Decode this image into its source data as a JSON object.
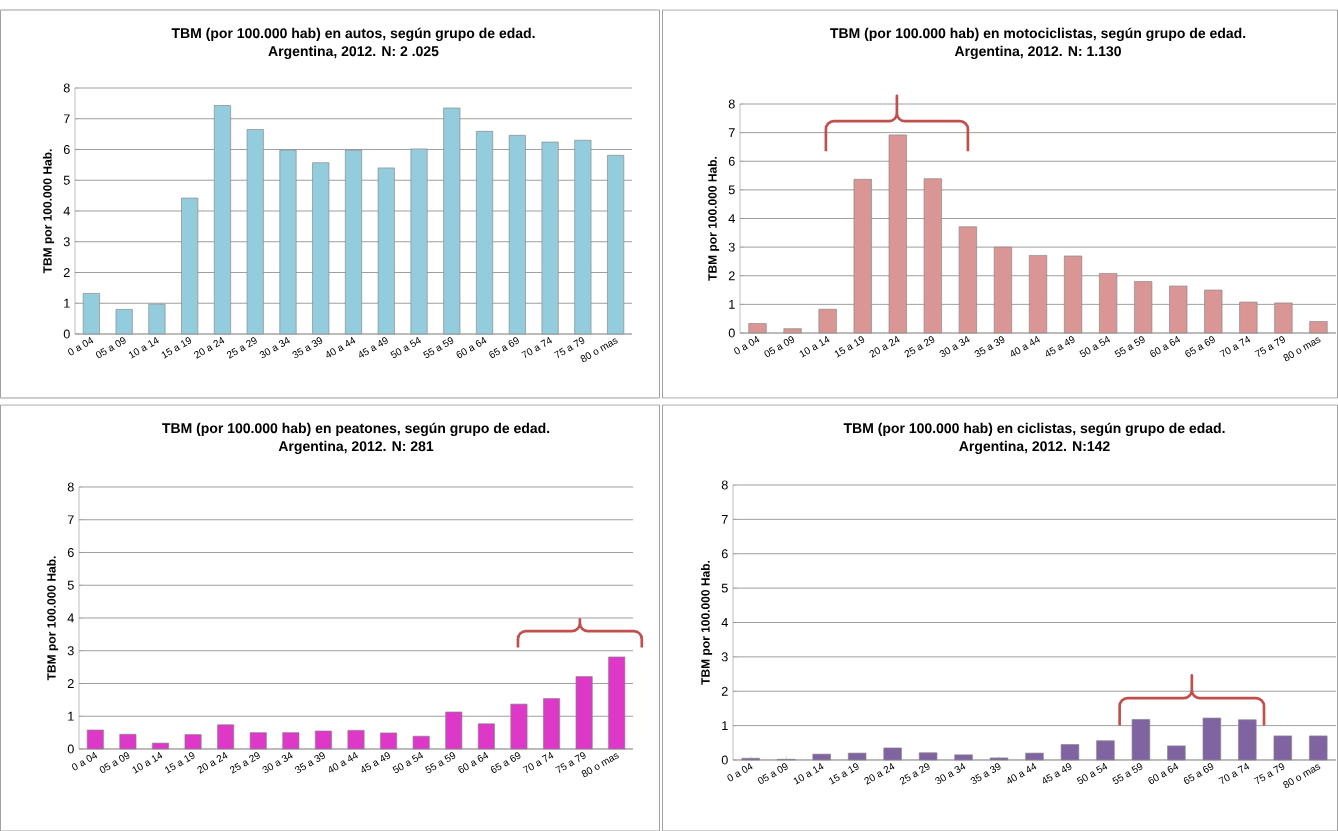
{
  "chart_data": [
    {
      "type": "bar",
      "title": "TBM (por 100.000 hab) en autos, según grupo de edad.",
      "subtitle": "Argentina, 2012. N: 2 .025",
      "ylabel": "TBM por 100.000 Hab.",
      "categories": [
        "0 a 04",
        "05 a 09",
        "10 a 14",
        "15 a 19",
        "20 a 24",
        "25 a 29",
        "30 a 34",
        "35 a 39",
        "40 a 44",
        "45 a 49",
        "50 a 54",
        "55 a 59",
        "60 a 64",
        "65 a 69",
        "70 a 74",
        "75 a 79",
        "80 o mas"
      ],
      "values": [
        1.32,
        0.8,
        0.97,
        4.42,
        7.43,
        6.65,
        5.98,
        5.57,
        5.98,
        5.4,
        6.02,
        7.35,
        6.59,
        6.46,
        6.24,
        6.3,
        5.81
      ],
      "color": "#93cddd",
      "ylim": [
        0,
        8
      ],
      "yticks": [
        0,
        1,
        2,
        3,
        4,
        5,
        6,
        7,
        8
      ],
      "grid": "y"
    },
    {
      "type": "bar",
      "title": "TBM (por 100.000 hab) en motociclistas, según grupo de edad.",
      "subtitle": "Argentina, 2012. N: 1.130",
      "ylabel": "TBM por 100.000 Hab.",
      "categories": [
        "0 a 04",
        "05 a 09",
        "10 a 14",
        "15 a 19",
        "20 a 24",
        "25 a 29",
        "30 a 34",
        "35 a 39",
        "40 a 44",
        "45 a 49",
        "50 a 54",
        "55 a 59",
        "60 a 64",
        "65 a 69",
        "70 a 74",
        "75 a 79",
        "80 o mas"
      ],
      "values": [
        0.33,
        0.15,
        0.83,
        5.37,
        6.92,
        5.39,
        3.71,
        3.0,
        2.71,
        2.69,
        2.08,
        1.8,
        1.64,
        1.5,
        1.08,
        1.05,
        0.4
      ],
      "color": "#d99694",
      "ylim": [
        0,
        8
      ],
      "yticks": [
        0,
        1,
        2,
        3,
        4,
        5,
        6,
        7,
        8
      ],
      "grid": "y"
    },
    {
      "type": "bar",
      "title": "TBM (por 100.000 hab) en peatones, según grupo de edad.",
      "subtitle": "Argentina, 2012. N: 281",
      "ylabel": "TBM por 100.000 Hab.",
      "categories": [
        "0 a 04",
        "05 a 09",
        "10 a 14",
        "15 a 19",
        "20 a 24",
        "25 a 29",
        "30 a 34",
        "35 a 39",
        "40 a 44",
        "45 a 49",
        "50 a 54",
        "55 a 59",
        "60 a 64",
        "65 a 69",
        "70 a 74",
        "75 a 79",
        "80 o mas"
      ],
      "values": [
        0.58,
        0.45,
        0.18,
        0.44,
        0.74,
        0.5,
        0.5,
        0.55,
        0.57,
        0.49,
        0.39,
        1.13,
        0.77,
        1.37,
        1.54,
        2.21,
        2.81
      ],
      "color": "#dd38c8",
      "ylim": [
        0,
        8
      ],
      "yticks": [
        0,
        1,
        2,
        3,
        4,
        5,
        6,
        7,
        8
      ],
      "grid": "y"
    },
    {
      "type": "bar",
      "title": "TBM (por 100.000 hab) en ciclistas, según grupo de edad.",
      "subtitle": "Argentina, 2012. N:142",
      "ylabel": "TBM por 100.000 Hab.",
      "categories": [
        "0 a 04",
        "05 a 09",
        "10 a 14",
        "15 a 19",
        "20 a 24",
        "25 a 29",
        "30 a 34",
        "35 a 39",
        "40 a 44",
        "45 a 49",
        "50 a 54",
        "55 a 59",
        "60 a 64",
        "65 a 69",
        "70 a 74",
        "75 a 79",
        "80 o mas"
      ],
      "values": [
        0.05,
        0.02,
        0.17,
        0.2,
        0.35,
        0.21,
        0.15,
        0.06,
        0.2,
        0.45,
        0.56,
        1.18,
        0.41,
        1.22,
        1.17,
        0.7,
        0.7
      ],
      "color": "#8064a2",
      "ylim": [
        0,
        8
      ],
      "yticks": [
        0,
        1,
        2,
        3,
        4,
        5,
        6,
        7,
        8
      ],
      "grid": "y"
    }
  ]
}
